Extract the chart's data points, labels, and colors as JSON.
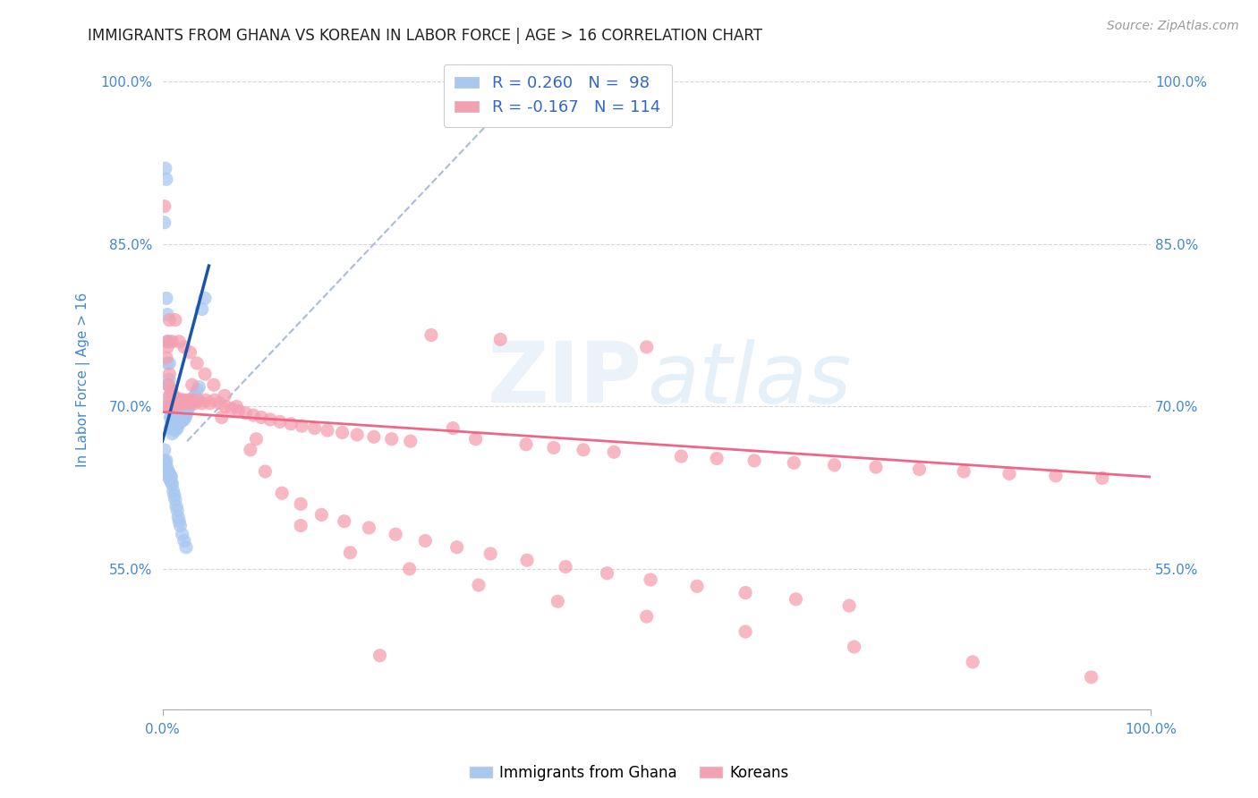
{
  "title": "IMMIGRANTS FROM GHANA VS KOREAN IN LABOR FORCE | AGE > 16 CORRELATION CHART",
  "source": "Source: ZipAtlas.com",
  "ylabel": "In Labor Force | Age > 16",
  "xlim": [
    0.0,
    1.0
  ],
  "ylim": [
    0.42,
    1.03
  ],
  "x_tick_labels": [
    "0.0%",
    "100.0%"
  ],
  "x_tick_positions": [
    0.0,
    1.0
  ],
  "y_tick_labels": [
    "55.0%",
    "70.0%",
    "85.0%",
    "100.0%"
  ],
  "y_tick_positions": [
    0.55,
    0.7,
    0.85,
    1.0
  ],
  "watermark_zip": "ZIP",
  "watermark_atlas": "atlas",
  "legend_line1": "R = 0.260   N =  98",
  "legend_line2": "R = -0.167   N = 114",
  "ghana_color": "#a8c8f0",
  "korean_color": "#f5a0b0",
  "ghana_line_color": "#1a55aa",
  "korean_line_color": "#ee6688",
  "dashed_line_color": "#aabbdd",
  "title_color": "#222222",
  "axis_label_color": "#4488cc",
  "tick_color": "#4488cc",
  "background_color": "#ffffff",
  "ghana_line_x": [
    0.0,
    0.047
  ],
  "ghana_line_y": [
    0.668,
    0.83
  ],
  "korean_line_x": [
    0.0,
    1.0
  ],
  "korean_line_y": [
    0.695,
    0.635
  ],
  "dashed_line_x": [
    0.025,
    0.38
  ],
  "dashed_line_y": [
    0.668,
    1.01
  ],
  "ghana_x": [
    0.002,
    0.003,
    0.004,
    0.004,
    0.005,
    0.005,
    0.005,
    0.006,
    0.006,
    0.006,
    0.007,
    0.007,
    0.007,
    0.007,
    0.008,
    0.008,
    0.008,
    0.008,
    0.009,
    0.009,
    0.009,
    0.009,
    0.01,
    0.01,
    0.01,
    0.01,
    0.01,
    0.011,
    0.011,
    0.011,
    0.012,
    0.012,
    0.012,
    0.013,
    0.013,
    0.013,
    0.013,
    0.014,
    0.014,
    0.014,
    0.015,
    0.015,
    0.015,
    0.016,
    0.016,
    0.016,
    0.017,
    0.017,
    0.018,
    0.018,
    0.019,
    0.019,
    0.02,
    0.02,
    0.021,
    0.022,
    0.022,
    0.023,
    0.024,
    0.025,
    0.026,
    0.027,
    0.028,
    0.03,
    0.031,
    0.033,
    0.035,
    0.037,
    0.04,
    0.043,
    0.002,
    0.002,
    0.003,
    0.003,
    0.004,
    0.004,
    0.005,
    0.005,
    0.006,
    0.006,
    0.007,
    0.007,
    0.008,
    0.008,
    0.009,
    0.009,
    0.01,
    0.011,
    0.012,
    0.013,
    0.014,
    0.015,
    0.016,
    0.017,
    0.018,
    0.02,
    0.022,
    0.024
  ],
  "ghana_y": [
    0.87,
    0.92,
    0.91,
    0.8,
    0.785,
    0.76,
    0.74,
    0.72,
    0.72,
    0.7,
    0.76,
    0.74,
    0.725,
    0.705,
    0.71,
    0.7,
    0.69,
    0.68,
    0.695,
    0.69,
    0.685,
    0.68,
    0.695,
    0.69,
    0.688,
    0.682,
    0.675,
    0.692,
    0.688,
    0.68,
    0.695,
    0.69,
    0.685,
    0.695,
    0.69,
    0.685,
    0.678,
    0.692,
    0.688,
    0.682,
    0.69,
    0.685,
    0.68,
    0.692,
    0.688,
    0.683,
    0.69,
    0.686,
    0.692,
    0.688,
    0.69,
    0.686,
    0.692,
    0.688,
    0.69,
    0.692,
    0.688,
    0.69,
    0.692,
    0.695,
    0.698,
    0.7,
    0.702,
    0.705,
    0.708,
    0.71,
    0.715,
    0.718,
    0.79,
    0.8,
    0.66,
    0.65,
    0.648,
    0.642,
    0.65,
    0.645,
    0.642,
    0.638,
    0.64,
    0.636,
    0.638,
    0.634,
    0.636,
    0.632,
    0.635,
    0.63,
    0.628,
    0.622,
    0.618,
    0.614,
    0.608,
    0.604,
    0.598,
    0.594,
    0.59,
    0.582,
    0.576,
    0.57
  ],
  "korean_x": [
    0.002,
    0.003,
    0.004,
    0.005,
    0.006,
    0.007,
    0.007,
    0.008,
    0.009,
    0.01,
    0.011,
    0.012,
    0.013,
    0.014,
    0.015,
    0.016,
    0.017,
    0.018,
    0.019,
    0.021,
    0.022,
    0.024,
    0.026,
    0.028,
    0.03,
    0.033,
    0.036,
    0.04,
    0.044,
    0.048,
    0.053,
    0.058,
    0.064,
    0.07,
    0.077,
    0.084,
    0.092,
    0.1,
    0.109,
    0.119,
    0.13,
    0.141,
    0.154,
    0.167,
    0.182,
    0.197,
    0.214,
    0.232,
    0.251,
    0.272,
    0.294,
    0.317,
    0.342,
    0.368,
    0.396,
    0.426,
    0.457,
    0.49,
    0.525,
    0.561,
    0.599,
    0.639,
    0.68,
    0.722,
    0.766,
    0.811,
    0.857,
    0.904,
    0.951,
    0.005,
    0.007,
    0.01,
    0.013,
    0.017,
    0.022,
    0.028,
    0.035,
    0.043,
    0.052,
    0.063,
    0.075,
    0.089,
    0.104,
    0.121,
    0.14,
    0.161,
    0.184,
    0.209,
    0.236,
    0.266,
    0.298,
    0.332,
    0.369,
    0.408,
    0.45,
    0.494,
    0.541,
    0.59,
    0.641,
    0.695,
    0.03,
    0.06,
    0.095,
    0.14,
    0.19,
    0.25,
    0.32,
    0.4,
    0.49,
    0.59,
    0.7,
    0.82,
    0.94,
    0.22
  ],
  "korean_y": [
    0.885,
    0.7,
    0.745,
    0.755,
    0.72,
    0.71,
    0.73,
    0.7,
    0.715,
    0.7,
    0.71,
    0.705,
    0.708,
    0.703,
    0.706,
    0.702,
    0.707,
    0.703,
    0.706,
    0.703,
    0.706,
    0.703,
    0.706,
    0.703,
    0.706,
    0.703,
    0.706,
    0.703,
    0.706,
    0.703,
    0.706,
    0.703,
    0.7,
    0.698,
    0.696,
    0.694,
    0.692,
    0.69,
    0.688,
    0.686,
    0.684,
    0.682,
    0.68,
    0.678,
    0.676,
    0.674,
    0.672,
    0.67,
    0.668,
    0.766,
    0.68,
    0.67,
    0.762,
    0.665,
    0.662,
    0.66,
    0.658,
    0.755,
    0.654,
    0.652,
    0.65,
    0.648,
    0.646,
    0.644,
    0.642,
    0.64,
    0.638,
    0.636,
    0.634,
    0.76,
    0.78,
    0.76,
    0.78,
    0.76,
    0.755,
    0.75,
    0.74,
    0.73,
    0.72,
    0.71,
    0.7,
    0.66,
    0.64,
    0.62,
    0.61,
    0.6,
    0.594,
    0.588,
    0.582,
    0.576,
    0.57,
    0.564,
    0.558,
    0.552,
    0.546,
    0.54,
    0.534,
    0.528,
    0.522,
    0.516,
    0.72,
    0.69,
    0.67,
    0.59,
    0.565,
    0.55,
    0.535,
    0.52,
    0.506,
    0.492,
    0.478,
    0.464,
    0.45,
    0.47
  ]
}
